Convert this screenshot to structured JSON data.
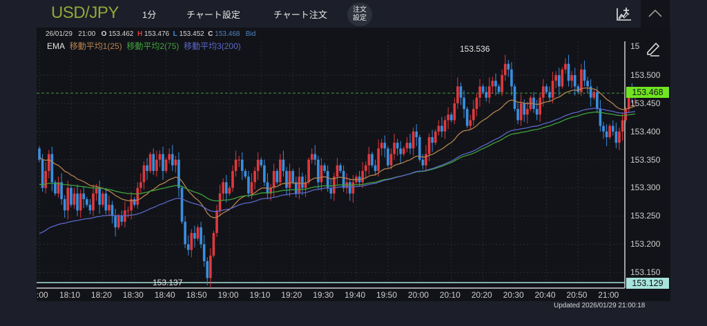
{
  "header": {
    "pair": "USD/JPY",
    "timeframe": "1分",
    "chart_settings": "チャート設定",
    "chart_order": "チャート注文",
    "order_settings_line1": "注文",
    "order_settings_line2": "設定"
  },
  "info": {
    "date": "26/01/29",
    "time": "21:00",
    "o_label": "O",
    "open": "153.462",
    "h_label": "H",
    "high": "153.476",
    "l_label": "L",
    "low": "153.452",
    "c_label": "C",
    "close": "153.468",
    "side": "Bid"
  },
  "ema": {
    "label": "EMA",
    "ma1": "移動平均1(25)",
    "ma2": "移動平均2(75)",
    "ma3": "移動平均3(200)",
    "colors": {
      "ma1": "#b78350",
      "ma2": "#3fa33c",
      "ma3": "#5b67c9"
    }
  },
  "price_axis": {
    "top_partial": "15",
    "ticks": [
      "153.500",
      "153.450",
      "153.400",
      "153.350",
      "153.300",
      "153.250",
      "153.200",
      "153.150"
    ],
    "current_price": "153.468",
    "low_marker": "153.129"
  },
  "annotations": {
    "high": "153.536",
    "low": "153.137"
  },
  "time_axis": [
    ":00",
    "18:10",
    "18:20",
    "18:30",
    "18:40",
    "18:50",
    "19:00",
    "19:10",
    "19:20",
    "19:30",
    "19:40",
    "19:50",
    "20:00",
    "20:10",
    "20:20",
    "20:30",
    "20:40",
    "20:50",
    "21:00"
  ],
  "updated": "Updated  2026/01/29 21:00:18",
  "colors": {
    "up": "#e0393e",
    "down": "#3a8fe0",
    "pair": "#93a83a",
    "current": "#6fe522",
    "low_marker": "#a6e4dc"
  },
  "chart_data": {
    "type": "candlestick",
    "title": "USD/JPY 1分",
    "xlabel": "",
    "ylabel": "",
    "ylim": [
      153.129,
      153.55
    ],
    "x_start": "18:00",
    "x_end": "21:00",
    "closes": [
      153.35,
      153.3,
      153.33,
      153.36,
      153.31,
      153.29,
      153.31,
      153.28,
      153.26,
      153.3,
      153.27,
      153.29,
      153.26,
      153.29,
      153.28,
      153.27,
      153.26,
      153.29,
      153.3,
      153.27,
      153.29,
      153.26,
      153.27,
      153.25,
      153.23,
      153.25,
      153.24,
      153.26,
      153.26,
      153.28,
      153.27,
      153.3,
      153.31,
      153.34,
      153.33,
      153.36,
      153.33,
      153.35,
      153.36,
      153.33,
      153.35,
      153.36,
      153.34,
      153.35,
      153.3,
      153.24,
      153.2,
      153.19,
      153.22,
      153.21,
      153.23,
      153.2,
      153.17,
      153.14,
      153.18,
      153.22,
      153.26,
      153.29,
      153.31,
      153.29,
      153.3,
      153.33,
      153.35,
      153.35,
      153.33,
      153.32,
      153.29,
      153.31,
      153.33,
      153.35,
      153.34,
      153.31,
      153.29,
      153.3,
      153.33,
      153.31,
      153.35,
      153.33,
      153.3,
      153.33,
      153.31,
      153.29,
      153.32,
      153.3,
      153.31,
      153.35,
      153.36,
      153.35,
      153.31,
      153.34,
      153.33,
      153.3,
      153.29,
      153.32,
      153.34,
      153.33,
      153.3,
      153.31,
      153.29,
      153.31,
      153.32,
      153.31,
      153.33,
      153.34,
      153.36,
      153.34,
      153.33,
      153.37,
      153.38,
      153.37,
      153.34,
      153.36,
      153.38,
      153.37,
      153.36,
      153.37,
      153.38,
      153.37,
      153.4,
      153.39,
      153.35,
      153.34,
      153.36,
      153.39,
      153.38,
      153.4,
      153.41,
      153.4,
      153.42,
      153.43,
      153.42,
      153.45,
      153.48,
      153.46,
      153.44,
      153.41,
      153.42,
      153.44,
      153.46,
      153.48,
      153.47,
      153.46,
      153.48,
      153.49,
      153.48,
      153.47,
      153.5,
      153.52,
      153.51,
      153.48,
      153.44,
      153.42,
      153.45,
      153.43,
      153.44,
      153.46,
      153.44,
      153.43,
      153.46,
      153.48,
      153.47,
      153.46,
      153.49,
      153.5,
      153.48,
      153.51,
      153.52,
      153.49,
      153.5,
      153.48,
      153.47,
      153.51,
      153.49,
      153.48,
      153.46,
      153.47,
      153.44,
      153.41,
      153.4,
      153.39,
      153.41,
      153.4,
      153.38,
      153.4,
      153.42,
      153.44,
      153.47,
      153.46,
      153.468
    ],
    "ema_series": [
      {
        "name": "移動平均1(25)",
        "start": 153.355,
        "end": 153.455
      },
      {
        "name": "移動平均2(75)",
        "start": 153.305,
        "end": 153.44
      },
      {
        "name": "移動平均3(200)",
        "start": 153.215,
        "end": 153.372
      }
    ],
    "high_marker": 153.536,
    "low_marker": 153.137,
    "current_price": 153.468
  }
}
